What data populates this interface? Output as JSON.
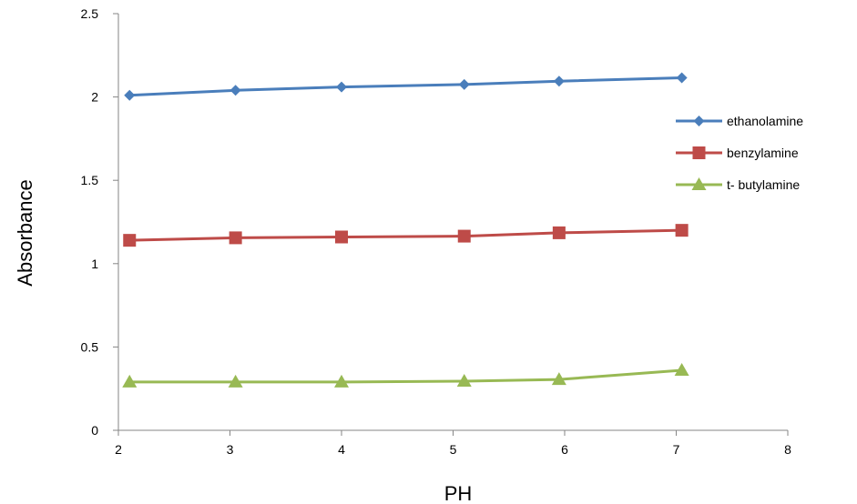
{
  "chart_data": {
    "type": "line",
    "title": "",
    "xlabel": "PH",
    "ylabel": "Absorbance",
    "xlim": [
      2,
      8
    ],
    "ylim": [
      0,
      2.5
    ],
    "xticks": [
      2,
      3,
      4,
      5,
      6,
      7,
      8
    ],
    "yticks": [
      0,
      0.5,
      1,
      1.5,
      2,
      2.5
    ],
    "grid": false,
    "legend_position": "right",
    "series": [
      {
        "name": "ethanolamine",
        "color": "#4a7ebb",
        "marker": "diamond",
        "x": [
          2.1,
          3.05,
          4.0,
          5.1,
          5.95,
          7.05
        ],
        "y": [
          2.01,
          2.04,
          2.06,
          2.075,
          2.095,
          2.115
        ]
      },
      {
        "name": "benzylamine",
        "color": "#be4b48",
        "marker": "square",
        "x": [
          2.1,
          3.05,
          4.0,
          5.1,
          5.95,
          7.05
        ],
        "y": [
          1.14,
          1.155,
          1.16,
          1.165,
          1.185,
          1.2
        ]
      },
      {
        "name": "t- butylamine",
        "color": "#98b954",
        "marker": "triangle",
        "x": [
          2.1,
          3.05,
          4.0,
          5.1,
          5.95,
          7.05
        ],
        "y": [
          0.29,
          0.29,
          0.29,
          0.295,
          0.305,
          0.36
        ]
      }
    ]
  }
}
